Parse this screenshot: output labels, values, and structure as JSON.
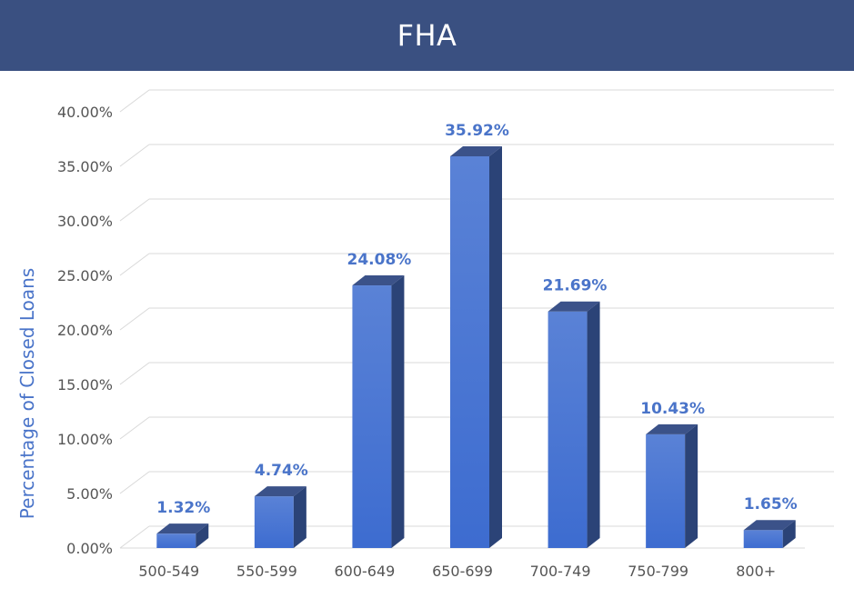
{
  "header": {
    "title": "FHA"
  },
  "chart_data": {
    "type": "bar",
    "title": "FHA",
    "xlabel": "",
    "ylabel": "Percentage of Closed Loans",
    "categories": [
      "500-549",
      "550-599",
      "600-649",
      "650-699",
      "700-749",
      "750-799",
      "800+"
    ],
    "values": [
      1.32,
      4.74,
      24.08,
      35.92,
      21.69,
      10.43,
      1.65
    ],
    "data_labels": [
      "1.32%",
      "4.74%",
      "24.08%",
      "35.92%",
      "21.69%",
      "10.43%",
      "1.65%"
    ],
    "yticks": [
      "0.00%",
      "5.00%",
      "10.00%",
      "15.00%",
      "20.00%",
      "25.00%",
      "30.00%",
      "35.00%",
      "40.00%"
    ],
    "ylim": [
      0,
      40
    ],
    "grid": true,
    "legend": "none",
    "style": "3d-column",
    "colors": {
      "bar": "#3d6cd0",
      "bar_top": "#3b5289",
      "bar_side": "#2b4377",
      "data_label": "#4a74c9",
      "grid": "#d9d9d9",
      "tick_text": "#555555",
      "header_bg": "#3a5081"
    }
  }
}
